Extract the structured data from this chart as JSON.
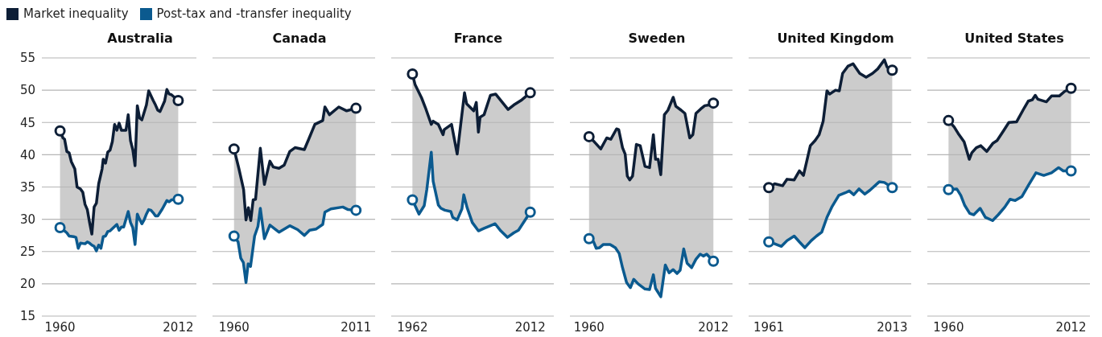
{
  "chart_data": [
    {
      "type": "line",
      "title": "Australia",
      "legend": "top right",
      "grid": "y",
      "xlim": [
        1952,
        2020
      ],
      "xticks": [
        1960,
        2012
      ],
      "ylim": [
        15,
        55
      ],
      "yticks": [
        15,
        20,
        25,
        30,
        35,
        40,
        45,
        50,
        55
      ],
      "series": [
        {
          "name": "Market inequality",
          "color": "#0d1e36",
          "x": [
            1960,
            1961.3,
            1962,
            1963,
            1964,
            1965,
            1966.5,
            1967.5,
            1969,
            1970,
            1971,
            1972,
            1973,
            1974,
            1975,
            1976,
            1977,
            1978.5,
            1979,
            1980,
            1981,
            1982,
            1983,
            1984,
            1985,
            1986,
            1987,
            1989,
            1990,
            1991,
            1992,
            1993,
            1994,
            1995,
            1996,
            1998,
            1999,
            2001,
            2002,
            2003,
            2004,
            2006,
            2007,
            2008,
            2009,
            2012
          ],
          "values": [
            43.7,
            42.6,
            42.4,
            40.5,
            40.3,
            38.9,
            37.8,
            35.0,
            34.7,
            34.2,
            32.3,
            31.5,
            29.5,
            27.7,
            31.9,
            32.5,
            35.5,
            37.8,
            39.3,
            38.7,
            40.4,
            40.7,
            42.0,
            44.7,
            43.8,
            44.9,
            43.8,
            43.8,
            46.2,
            42.2,
            40.8,
            38.3,
            47.6,
            45.7,
            45.4,
            47.7,
            49.9,
            48.4,
            47.7,
            46.9,
            46.7,
            48.3,
            50.1,
            49.4,
            49.3,
            48.4
          ]
        },
        {
          "name": "Post-tax and -transfer inequality",
          "color": "#0b5a8f",
          "x": [
            1960,
            1962,
            1963,
            1964,
            1966,
            1967,
            1968,
            1969,
            1971,
            1972,
            1973,
            1974,
            1975,
            1976,
            1977,
            1978,
            1979,
            1980,
            1981,
            1982,
            1985,
            1986,
            1987,
            1988,
            1990,
            1991,
            1992,
            1993,
            1994,
            1995,
            1996,
            1997,
            1998,
            1999,
            2000,
            2001,
            2002,
            2003,
            2005,
            2007,
            2008,
            2009,
            2012
          ],
          "values": [
            28.7,
            28.2,
            27.9,
            27.4,
            27.3,
            27.2,
            25.5,
            26.3,
            26.2,
            26.5,
            26.3,
            26.0,
            25.8,
            25.1,
            26.0,
            25.5,
            27.3,
            27.4,
            28.1,
            28.2,
            29.2,
            28.3,
            28.8,
            28.8,
            31.2,
            29.5,
            28.7,
            26.1,
            30.8,
            30.0,
            29.3,
            29.9,
            30.8,
            31.5,
            31.4,
            31.0,
            30.5,
            30.5,
            31.6,
            32.9,
            32.7,
            33.0,
            33.1
          ]
        }
      ]
    },
    {
      "type": "line",
      "title": "Canada",
      "tick_labels": "x",
      "grid": "y",
      "xlim": [
        1951,
        2019
      ],
      "xticks": [
        1960,
        2011
      ],
      "ylim": [
        15,
        55
      ],
      "yticks": [
        15,
        20,
        25,
        30,
        35,
        40,
        45,
        50,
        55
      ],
      "series": [
        {
          "color": "#0d1e36",
          "x": [
            1960,
            1962,
            1964,
            1965,
            1966,
            1967,
            1968,
            1969,
            1971,
            1972.7,
            1975,
            1976.4,
            1978.8,
            1981,
            1983.3,
            1985.5,
            1989.4,
            1991,
            1993.8,
            1997.1,
            1998,
            1999.9,
            2003.8,
            2007.1,
            2011
          ],
          "values": [
            40.9,
            37.9,
            34.6,
            29.9,
            31.8,
            29.8,
            33.0,
            33.1,
            41.0,
            35.4,
            39.0,
            38.1,
            37.9,
            38.4,
            40.5,
            41.1,
            40.8,
            42.2,
            44.7,
            45.3,
            47.4,
            46.2,
            47.4,
            46.8,
            47.2
          ]
        },
        {
          "color": "#0b5a8f",
          "x": [
            1960,
            1961.7,
            1962.8,
            1963.9,
            1965,
            1965.9,
            1966.9,
            1968.6,
            1970,
            1971,
            1972.7,
            1975,
            1978.8,
            1983.3,
            1986.6,
            1989.4,
            1991.6,
            1994.4,
            1997.1,
            1998,
            2000.5,
            2005.5,
            2007.7,
            2011
          ],
          "values": [
            27.4,
            26.5,
            24.0,
            23.3,
            20.2,
            23.1,
            22.7,
            27.4,
            28.9,
            31.7,
            27.0,
            29.1,
            28.0,
            29.0,
            28.4,
            27.5,
            28.3,
            28.5,
            29.2,
            31.1,
            31.6,
            31.9,
            31.5,
            31.4
          ]
        }
      ]
    },
    {
      "type": "line",
      "title": "France",
      "tick_labels": "x",
      "grid": "y",
      "xlim": [
        1953,
        2022
      ],
      "xticks": [
        1962,
        2012
      ],
      "ylim": [
        15,
        55
      ],
      "yticks": [
        15,
        20,
        25,
        30,
        35,
        40,
        45,
        50,
        55
      ],
      "series": [
        {
          "color": "#0d1e36",
          "x": [
            1962,
            1963.1,
            1965.9,
            1967.5,
            1970,
            1970.8,
            1973,
            1975,
            1975.5,
            1978.6,
            1981,
            1982.4,
            1984.1,
            1985,
            1988,
            1989.1,
            1990,
            1990.7,
            1992.4,
            1995.1,
            1997.3,
            2002.6,
            2005,
            2008.4,
            2012
          ],
          "values": [
            52.5,
            50.9,
            48.8,
            47.3,
            44.7,
            45.2,
            44.7,
            43.1,
            43.9,
            44.7,
            40.1,
            44.4,
            49.6,
            47.9,
            46.8,
            48.1,
            43.5,
            45.8,
            46.2,
            49.2,
            49.4,
            47.0,
            47.7,
            48.5,
            49.6
          ]
        },
        {
          "color": "#0b5a8f",
          "x": [
            1962,
            1964.8,
            1967,
            1968.1,
            1970,
            1970.8,
            1973,
            1974.1,
            1975.8,
            1978.3,
            1979.1,
            1981,
            1983,
            1983.8,
            1985.2,
            1987.4,
            1990,
            1992.4,
            1995.1,
            1997.1,
            1999.5,
            2002.3,
            2005,
            2007,
            2009.5,
            2012
          ],
          "values": [
            33.0,
            30.8,
            32.1,
            34.6,
            40.4,
            35.9,
            32.2,
            31.7,
            31.4,
            31.2,
            30.3,
            29.9,
            31.6,
            33.8,
            31.8,
            29.5,
            28.2,
            28.6,
            29.0,
            29.3,
            28.2,
            27.2,
            27.9,
            28.3,
            29.7,
            31.1
          ]
        }
      ]
    },
    {
      "type": "line",
      "title": "Sweden",
      "tick_labels": "x",
      "grid": "y",
      "xlim": [
        1952,
        2020
      ],
      "xticks": [
        1960,
        2012
      ],
      "ylim": [
        15,
        55
      ],
      "yticks": [
        15,
        20,
        25,
        30,
        35,
        40,
        45,
        50,
        55
      ],
      "series": [
        {
          "color": "#0d1e36",
          "x": [
            1960,
            1962.2,
            1964.9,
            1967.4,
            1969.1,
            1971.5,
            1972.4,
            1974,
            1975.1,
            1976,
            1977,
            1978.2,
            1979.8,
            1981.4,
            1983.4,
            1985.3,
            1986.9,
            1987.8,
            1988.9,
            1990,
            1991.5,
            1993,
            1995.2,
            1996.3,
            1998.5,
            2000.1,
            2002.1,
            2003.4,
            2004.7,
            2006.7,
            2008.4,
            2010.2,
            2012
          ],
          "values": [
            42.8,
            42.0,
            40.9,
            42.6,
            42.4,
            44.0,
            43.9,
            41.1,
            40.1,
            36.7,
            36.1,
            36.7,
            41.6,
            41.4,
            38.2,
            38.0,
            43.1,
            39.3,
            39.3,
            36.9,
            46.2,
            46.9,
            48.9,
            47.5,
            46.9,
            46.4,
            42.6,
            43.1,
            46.4,
            47.1,
            47.6,
            47.7,
            48.0
          ]
        },
        {
          "color": "#0b5a8f",
          "x": [
            1960,
            1961.9,
            1963,
            1964.4,
            1966,
            1968.8,
            1971,
            1972.6,
            1974,
            1975.7,
            1977.3,
            1978.7,
            1980.5,
            1983.4,
            1985.3,
            1986.9,
            1987.8,
            1990,
            1991.9,
            1993.5,
            1995.2,
            1996.8,
            1998.1,
            1999.6,
            2001,
            2002.9,
            2004.7,
            2006.5,
            2007.8,
            2009.2,
            2012
          ],
          "values": [
            27.0,
            26.5,
            25.5,
            25.6,
            26.1,
            26.1,
            25.6,
            24.7,
            22.5,
            20.2,
            19.4,
            20.7,
            20.0,
            19.2,
            19.1,
            21.4,
            19.3,
            18.0,
            22.9,
            21.7,
            22.2,
            21.6,
            22.1,
            25.4,
            23.2,
            22.5,
            23.8,
            24.6,
            24.3,
            24.6,
            23.5
          ]
        }
      ]
    },
    {
      "type": "line",
      "title": "United Kingdom",
      "tick_labels": "x",
      "grid": "y",
      "xlim": [
        1952.5,
        2021
      ],
      "xticks": [
        1961,
        2013
      ],
      "ylim": [
        15,
        55
      ],
      "yticks": [
        15,
        20,
        25,
        30,
        35,
        40,
        45,
        50,
        55
      ],
      "series": [
        {
          "color": "#0d1e36",
          "x": [
            1961,
            1963.5,
            1966.8,
            1968.7,
            1971.7,
            1973.9,
            1975.6,
            1978.5,
            1980.5,
            1982.2,
            1983.9,
            1985.5,
            1986.6,
            1989.1,
            1990.7,
            1992.1,
            1994.3,
            1996.5,
            1999.3,
            2002,
            2004.7,
            2006.9,
            2009.7,
            2010.8,
            2013
          ],
          "values": [
            34.9,
            35.5,
            35.2,
            36.2,
            36.1,
            37.5,
            36.8,
            41.4,
            42.2,
            43.1,
            45.2,
            49.9,
            49.4,
            50.0,
            49.9,
            52.6,
            53.7,
            54.1,
            52.6,
            52.0,
            52.6,
            53.3,
            54.7,
            53.6,
            53.1
          ]
        },
        {
          "color": "#0b5a8f",
          "x": [
            1961,
            1963.5,
            1966.3,
            1968.7,
            1971.7,
            1973.9,
            1976.2,
            1978.9,
            1981.1,
            1983.3,
            1985.5,
            1987.7,
            1990.5,
            1993.2,
            1994.9,
            1996.8,
            1999,
            2001.4,
            2003.6,
            2007.5,
            2009.7,
            2013
          ],
          "values": [
            26.5,
            26.2,
            25.8,
            26.7,
            27.4,
            26.5,
            25.6,
            26.7,
            27.4,
            28.0,
            30.3,
            32.0,
            33.7,
            34.1,
            34.4,
            33.8,
            34.7,
            33.9,
            34.5,
            35.8,
            35.7,
            34.9
          ]
        }
      ]
    },
    {
      "type": "line",
      "title": "United States",
      "tick_labels": "x",
      "grid": "y",
      "xlim": [
        1951,
        2020
      ],
      "xticks": [
        1960,
        2012
      ],
      "ylim": [
        15,
        55
      ],
      "yticks": [
        15,
        20,
        25,
        30,
        35,
        40,
        45,
        50,
        55
      ],
      "series": [
        {
          "color": "#0d1e36",
          "x": [
            1960,
            1962.4,
            1964.1,
            1966.6,
            1968.8,
            1969.9,
            1971.8,
            1973.7,
            1976.2,
            1978.9,
            1980.6,
            1983.3,
            1985.6,
            1988.9,
            1991.6,
            1993.8,
            1995.5,
            1996.8,
            1997.9,
            2001.5,
            2003.7,
            2007,
            2009.2,
            2012
          ],
          "values": [
            45.3,
            44.3,
            43.3,
            42.0,
            39.3,
            40.3,
            41.1,
            41.4,
            40.5,
            41.8,
            42.2,
            43.7,
            45.0,
            45.1,
            46.9,
            48.3,
            48.5,
            49.2,
            48.6,
            48.2,
            49.1,
            49.1,
            49.8,
            50.3
          ]
        },
        {
          "color": "#0b5a8f",
          "x": [
            1960,
            1963.5,
            1965.2,
            1966.8,
            1969,
            1970.7,
            1973.4,
            1975.6,
            1978.7,
            1981.1,
            1983.9,
            1986.1,
            1988.3,
            1991.1,
            1993.8,
            1997.1,
            2000.4,
            2003.7,
            2006.7,
            2008.7,
            2012
          ],
          "values": [
            34.6,
            34.7,
            33.7,
            32.2,
            30.9,
            30.7,
            31.7,
            30.3,
            29.8,
            30.7,
            31.9,
            33.1,
            32.9,
            33.5,
            35.2,
            37.2,
            36.8,
            37.2,
            38.0,
            37.5,
            37.5
          ]
        }
      ]
    }
  ]
}
